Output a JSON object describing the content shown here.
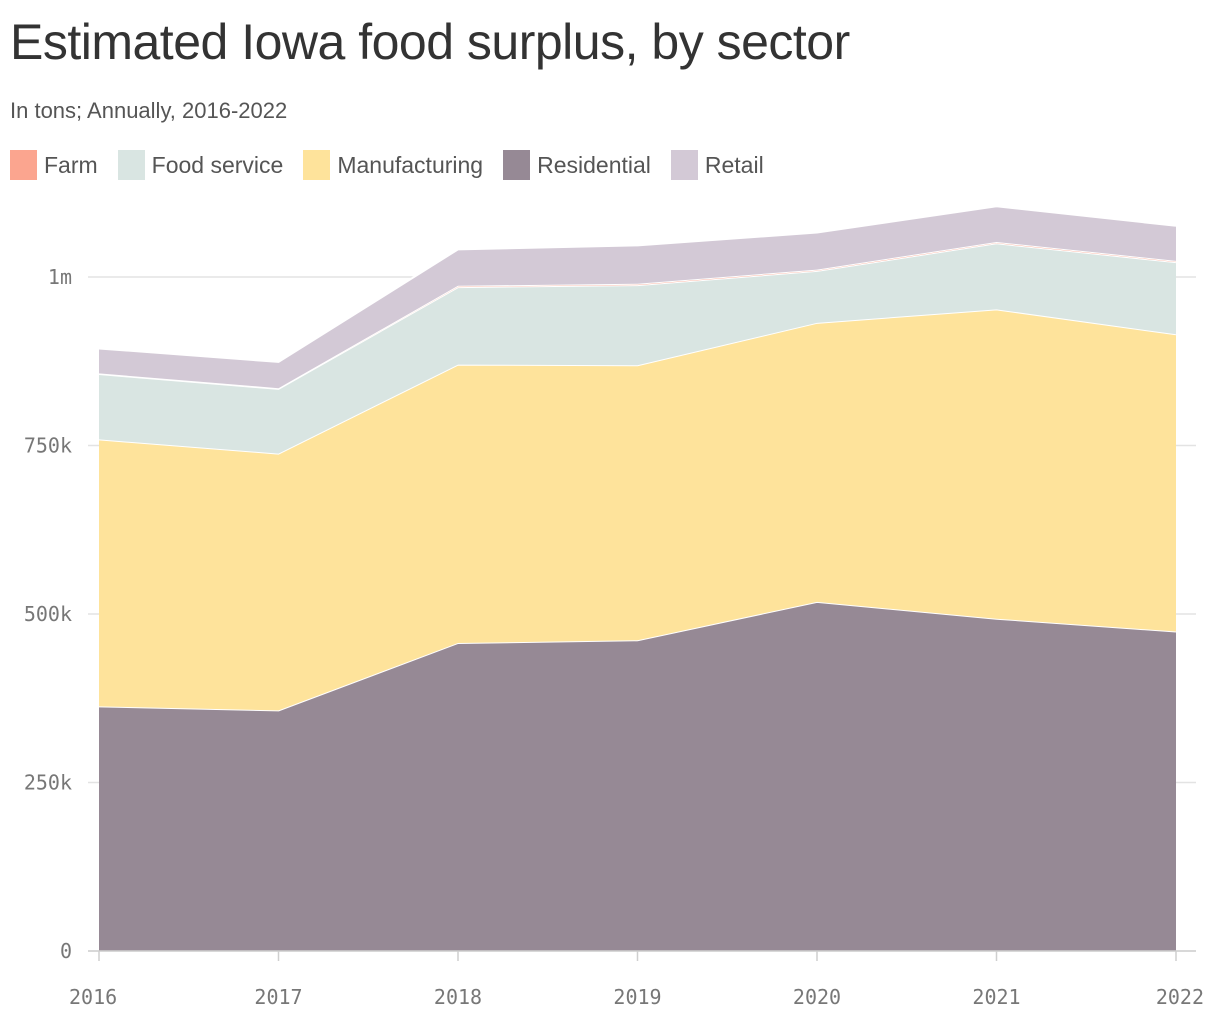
{
  "chart": {
    "title": "Estimated Iowa food surplus, by sector",
    "subtitle": "In tons; Annually, 2016-2022"
  },
  "legend": [
    {
      "label": "Farm",
      "color": "#FBA58F"
    },
    {
      "label": "Food service",
      "color": "#D9E5E2"
    },
    {
      "label": "Manufacturing",
      "color": "#FEE39B"
    },
    {
      "label": "Residential",
      "color": "#968995"
    },
    {
      "label": "Retail",
      "color": "#D3C9D6"
    }
  ],
  "chart_data": {
    "type": "area",
    "stacked": true,
    "title": "Estimated Iowa food surplus, by sector",
    "subtitle": "In tons; Annually, 2016-2022",
    "xlabel": "",
    "ylabel": "",
    "x": [
      "2016",
      "2017",
      "2018",
      "2019",
      "2020",
      "2021",
      "2022"
    ],
    "ylim": [
      0,
      1000000
    ],
    "yticks": [
      0,
      250000,
      500000,
      750000,
      1000000
    ],
    "ytick_labels": [
      "0",
      "250k",
      "500k",
      "750k",
      "1m"
    ],
    "grid": true,
    "legend_position": "top-left",
    "series": [
      {
        "name": "Residential",
        "color": "#968995",
        "values": [
          363000,
          357000,
          457000,
          461000,
          518000,
          493000,
          474000
        ]
      },
      {
        "name": "Manufacturing",
        "color": "#FEE39B",
        "values": [
          396000,
          381000,
          413000,
          408000,
          414000,
          459000,
          441000
        ]
      },
      {
        "name": "Food service",
        "color": "#D9E5E2",
        "values": [
          97000,
          96000,
          115000,
          119000,
          77000,
          98000,
          107000
        ]
      },
      {
        "name": "Farm",
        "color": "#FBA58F",
        "values": [
          1000,
          1000,
          2000,
          2000,
          2000,
          2000,
          2000
        ]
      },
      {
        "name": "Retail",
        "color": "#D3C9D6",
        "values": [
          37000,
          39000,
          54000,
          57000,
          55000,
          53000,
          52000
        ]
      }
    ]
  }
}
